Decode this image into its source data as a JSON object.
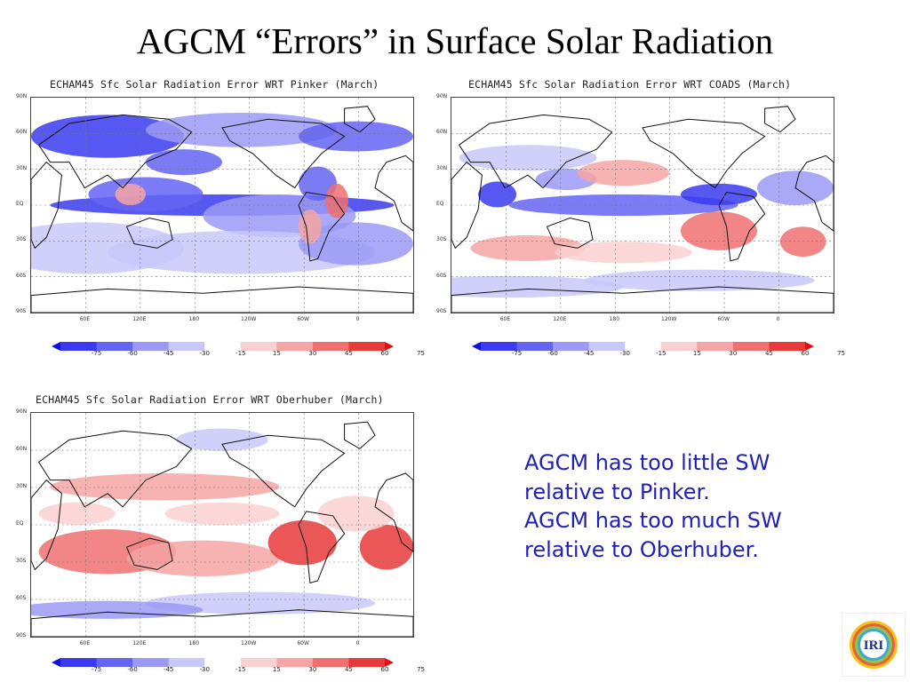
{
  "slide": {
    "title": "AGCM “Errors” in Surface Solar Radiation"
  },
  "panels": [
    {
      "title": "ECHAM45 Sfc Solar Radiation Error WRT Pinker (March)",
      "bias": "negative"
    },
    {
      "title": "ECHAM45 Sfc Solar Radiation Error WRT COADS (March)",
      "bias": "mixed"
    },
    {
      "title": "ECHAM45 Sfc Solar Radiation Error WRT Oberhuber (March)",
      "bias": "positive"
    }
  ],
  "axes": {
    "lat_labels": [
      "90N",
      "60N",
      "30N",
      "EQ",
      "30S",
      "60S",
      "90S"
    ],
    "lon_labels": [
      "60E",
      "120E",
      "180",
      "120W",
      "60W",
      "0"
    ]
  },
  "colorbar": {
    "ticks": [
      "-75",
      "-60",
      "-45",
      "-30",
      "-15",
      "15",
      "30",
      "45",
      "60",
      "75"
    ],
    "colors": [
      "#1010e0",
      "#3a3af0",
      "#6464f4",
      "#9a9af6",
      "#c8c8fa",
      "#ffffff",
      "#fad0d0",
      "#f6a4a4",
      "#f07070",
      "#e83a3a",
      "#e01010"
    ]
  },
  "notes": [
    "AGCM has too little SW",
    "relative to Pinker.",
    "AGCM has too much SW",
    "relative to Oberhuber."
  ],
  "logo": {
    "text": "IRI",
    "icon": "iri-logo-icon"
  }
}
